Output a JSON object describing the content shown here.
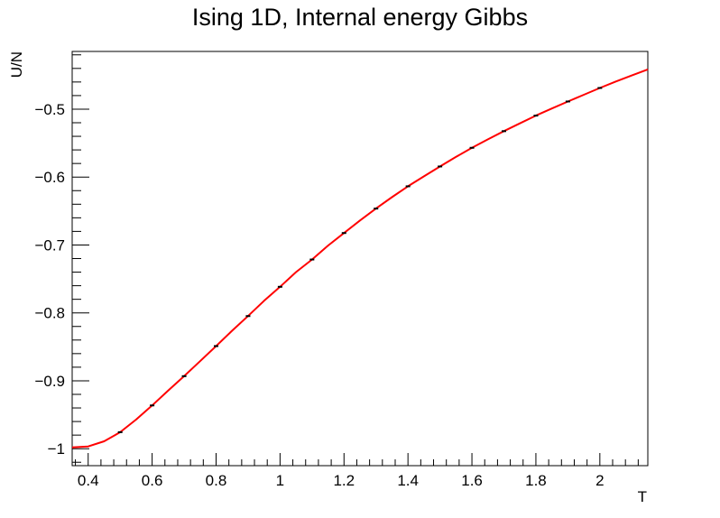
{
  "chart_data": {
    "type": "line",
    "title": "Ising 1D, Internal energy Gibbs",
    "xlabel": "T",
    "ylabel": "U/N",
    "xlim": [
      0.35,
      2.15
    ],
    "ylim": [
      -1.025,
      -0.415
    ],
    "x_ticks": [
      {
        "value": 0.4,
        "label": "0.4"
      },
      {
        "value": 0.6,
        "label": "0.6"
      },
      {
        "value": 0.8,
        "label": "0.8"
      },
      {
        "value": 1.0,
        "label": "1"
      },
      {
        "value": 1.2,
        "label": "1.2"
      },
      {
        "value": 1.4,
        "label": "1.4"
      },
      {
        "value": 1.6,
        "label": "1.6"
      },
      {
        "value": 1.8,
        "label": "1.8"
      },
      {
        "value": 2.0,
        "label": "2"
      }
    ],
    "y_ticks": [
      {
        "value": -1.0,
        "label": "−1"
      },
      {
        "value": -0.9,
        "label": "−0.9"
      },
      {
        "value": -0.8,
        "label": "−0.8"
      },
      {
        "value": -0.7,
        "label": "−0.7"
      },
      {
        "value": -0.6,
        "label": "−0.6"
      },
      {
        "value": -0.5,
        "label": "−0.5"
      }
    ],
    "grid": false,
    "series": [
      {
        "kind": "curve",
        "color": "#ff0000",
        "x": [
          0.35,
          0.4,
          0.45,
          0.5,
          0.55,
          0.6,
          0.65,
          0.7,
          0.75,
          0.8,
          0.85,
          0.9,
          0.95,
          1.0,
          1.05,
          1.1,
          1.15,
          1.2,
          1.25,
          1.3,
          1.35,
          1.4,
          1.45,
          1.5,
          1.55,
          1.6,
          1.65,
          1.7,
          1.75,
          1.8,
          1.85,
          1.9,
          1.95,
          2.0,
          2.05,
          2.1,
          2.15
        ],
        "y": [
          -0.9982,
          -0.9967,
          -0.9891,
          -0.9757,
          -0.9571,
          -0.9363,
          -0.9145,
          -0.8932,
          -0.8711,
          -0.8489,
          -0.8263,
          -0.8047,
          -0.7822,
          -0.7616,
          -0.74,
          -0.7214,
          -0.7009,
          -0.6824,
          -0.6639,
          -0.6464,
          -0.6296,
          -0.6136,
          -0.5989,
          -0.5844,
          -0.5703,
          -0.5569,
          -0.5444,
          -0.5324,
          -0.5209,
          -0.5095,
          -0.499,
          -0.4887,
          -0.4788,
          -0.4688,
          -0.4593,
          -0.4503,
          -0.4414
        ]
      },
      {
        "kind": "points",
        "color": "#000000",
        "x": [
          0.5,
          0.6,
          0.7,
          0.8,
          0.9,
          1.0,
          1.1,
          1.2,
          1.3,
          1.4,
          1.5,
          1.6,
          1.7,
          1.8,
          1.9,
          2.0
        ],
        "y": [
          -0.9757,
          -0.9363,
          -0.8932,
          -0.8489,
          -0.8047,
          -0.7616,
          -0.7214,
          -0.6824,
          -0.6464,
          -0.6136,
          -0.5844,
          -0.5569,
          -0.5324,
          -0.5095,
          -0.4887,
          -0.4688
        ]
      }
    ]
  }
}
